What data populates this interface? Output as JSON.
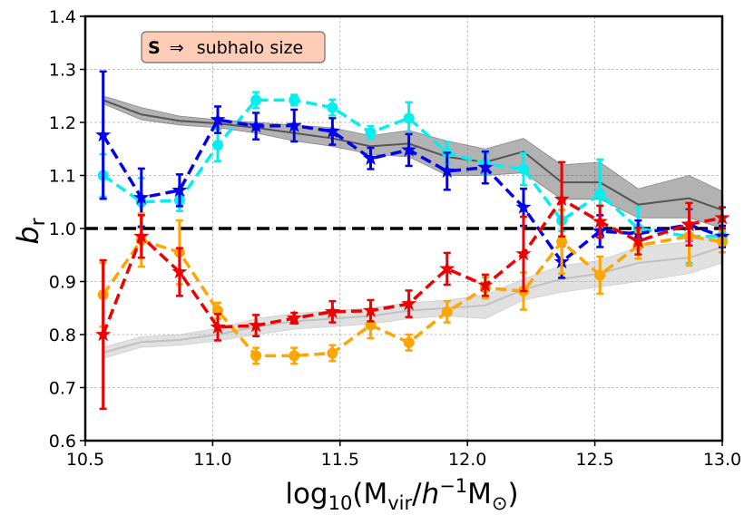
{
  "chart_data": {
    "type": "line",
    "title": "",
    "xlabel": "log10(Mvir/h^-1 M_sun)",
    "ylabel": "b_r",
    "xlim": [
      10.5,
      13.0
    ],
    "ylim": [
      0.6,
      1.4
    ],
    "xticks": [
      "10.5",
      "11.0",
      "11.5",
      "12.0",
      "12.5",
      "13.0"
    ],
    "yticks": [
      "0.6",
      "0.7",
      "0.8",
      "0.9",
      "1.0",
      "1.1",
      "1.2",
      "1.3",
      "1.4"
    ],
    "grid": true,
    "annotation": {
      "bold": "S",
      "arrow": "⇒",
      "text": "subhalo size",
      "placement": "top-left",
      "bg": "#fdcdb8"
    },
    "reference_line": {
      "y": 1.0,
      "style": "dashed",
      "color": "#000000"
    },
    "bands": [
      {
        "name": "gray band high",
        "color": "#555555",
        "x": [
          10.57,
          10.72,
          10.87,
          11.02,
          11.17,
          11.32,
          11.47,
          11.62,
          11.77,
          11.92,
          12.07,
          12.22,
          12.37,
          12.52,
          12.67,
          12.87,
          13.0
        ],
        "mid": [
          1.242,
          1.215,
          1.203,
          1.198,
          1.19,
          1.18,
          1.17,
          1.155,
          1.16,
          1.135,
          1.125,
          1.145,
          1.087,
          1.087,
          1.045,
          1.057,
          1.035
        ],
        "lo": [
          1.235,
          1.205,
          1.195,
          1.19,
          1.18,
          1.165,
          1.155,
          1.14,
          1.135,
          1.1,
          1.1,
          1.105,
          1.055,
          1.055,
          1.02,
          1.02,
          1.0
        ],
        "hi": [
          1.25,
          1.228,
          1.212,
          1.205,
          1.2,
          1.195,
          1.19,
          1.175,
          1.185,
          1.165,
          1.15,
          1.17,
          1.12,
          1.125,
          1.075,
          1.1,
          1.07
        ]
      },
      {
        "name": "gray band low",
        "color": "#bbbbbb",
        "x": [
          10.57,
          10.72,
          10.87,
          11.02,
          11.17,
          11.32,
          11.47,
          11.62,
          11.77,
          11.92,
          12.07,
          12.22,
          12.37,
          12.52,
          12.67,
          12.87,
          13.0
        ],
        "mid": [
          0.766,
          0.786,
          0.79,
          0.8,
          0.815,
          0.825,
          0.83,
          0.835,
          0.845,
          0.85,
          0.855,
          0.885,
          0.905,
          0.915,
          0.935,
          0.945,
          0.965
        ],
        "lo": [
          0.755,
          0.776,
          0.78,
          0.788,
          0.8,
          0.81,
          0.815,
          0.82,
          0.83,
          0.835,
          0.83,
          0.865,
          0.88,
          0.89,
          0.9,
          0.915,
          0.935
        ],
        "hi": [
          0.776,
          0.796,
          0.8,
          0.812,
          0.83,
          0.84,
          0.845,
          0.85,
          0.86,
          0.865,
          0.875,
          0.905,
          0.93,
          0.94,
          0.965,
          0.975,
          0.995
        ]
      }
    ],
    "series": [
      {
        "name": "cyan circles",
        "color": "#00f0f0",
        "marker": "circle",
        "x": [
          10.57,
          10.72,
          10.87,
          11.02,
          11.17,
          11.32,
          11.47,
          11.62,
          11.77,
          11.92,
          12.07,
          12.22,
          12.37,
          12.52,
          12.67,
          12.87,
          13.0
        ],
        "y": [
          1.1,
          1.05,
          1.053,
          1.157,
          1.242,
          1.242,
          1.228,
          1.181,
          1.208,
          1.143,
          1.122,
          1.112,
          1.015,
          1.065,
          1.0,
          0.985,
          0.985
        ],
        "err": [
          0.04,
          0.045,
          0.02,
          0.03,
          0.015,
          0.01,
          0.015,
          0.012,
          0.03,
          0.02,
          0.02,
          0.03,
          0.02,
          0.065,
          0.04,
          0.05,
          0.02
        ]
      },
      {
        "name": "blue stars",
        "color": "#0000ee",
        "marker": "star",
        "x": [
          10.57,
          10.72,
          10.87,
          11.02,
          11.17,
          11.32,
          11.47,
          11.62,
          11.77,
          11.92,
          12.07,
          12.22,
          12.37,
          12.52,
          12.67,
          12.87,
          13.0
        ],
        "y": [
          1.176,
          1.058,
          1.072,
          1.205,
          1.193,
          1.194,
          1.183,
          1.132,
          1.148,
          1.108,
          1.115,
          1.04,
          0.937,
          0.995,
          0.99,
          1.007,
          0.985
        ],
        "err": [
          0.12,
          0.055,
          0.03,
          0.025,
          0.025,
          0.03,
          0.025,
          0.02,
          0.03,
          0.035,
          0.03,
          0.035,
          0.03,
          0.03,
          0.025,
          0.03,
          0.02
        ]
      },
      {
        "name": "orange circles",
        "color": "#ffa500",
        "marker": "circle",
        "x": [
          10.57,
          10.72,
          10.87,
          11.02,
          11.17,
          11.32,
          11.47,
          11.62,
          11.77,
          11.92,
          12.07,
          12.22,
          12.37,
          12.52,
          12.67,
          12.87,
          13.0
        ],
        "y": [
          0.875,
          0.978,
          0.955,
          0.845,
          0.76,
          0.76,
          0.765,
          0.818,
          0.785,
          0.843,
          0.888,
          0.882,
          0.975,
          0.912,
          0.968,
          0.985,
          0.975
        ],
        "err": [
          0.06,
          0.05,
          0.06,
          0.015,
          0.015,
          0.015,
          0.015,
          0.025,
          0.015,
          0.02,
          0.02,
          0.035,
          0.06,
          0.035,
          0.025,
          0.055,
          0.02
        ]
      },
      {
        "name": "red stars",
        "color": "#ee0000",
        "marker": "star",
        "x": [
          10.57,
          10.72,
          10.87,
          11.02,
          11.17,
          11.32,
          11.47,
          11.62,
          11.77,
          11.92,
          12.07,
          12.22,
          12.37,
          12.52,
          12.67,
          12.87,
          13.0
        ],
        "y": [
          0.8,
          0.985,
          0.918,
          0.814,
          0.817,
          0.831,
          0.843,
          0.845,
          0.858,
          0.924,
          0.893,
          0.952,
          1.055,
          1.013,
          0.976,
          1.008,
          1.02
        ],
        "err": [
          0.14,
          0.04,
          0.045,
          0.025,
          0.02,
          0.01,
          0.02,
          0.02,
          0.025,
          0.03,
          0.02,
          0.07,
          0.07,
          0.03,
          0.025,
          0.04,
          0.02
        ]
      }
    ]
  }
}
